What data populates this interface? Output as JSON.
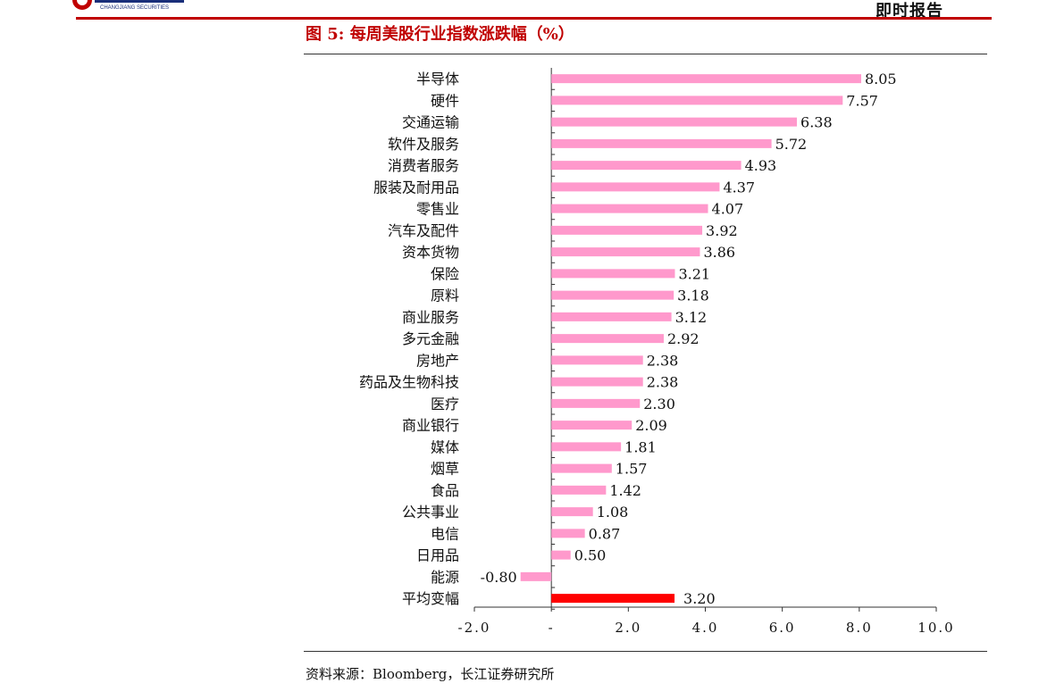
{
  "header": {
    "report_type": "即时报告",
    "logo_text": "CHANGJIANG SECURITIES"
  },
  "figure": {
    "title": "图 5:  每周美股行业指数涨跌幅（%）",
    "source": "资料来源：Bloomberg，长江证券研究所"
  },
  "colors": {
    "accent": "#c00000",
    "bar": "#ff99cc",
    "highlight_bar": "#ff0000"
  },
  "chart_data": {
    "type": "bar",
    "orientation": "horizontal",
    "categories": [
      "半导体",
      "硬件",
      "交通运输",
      "软件及服务",
      "消费者服务",
      "服装及耐用品",
      "零售业",
      "汽车及配件",
      "资本货物",
      "保险",
      "原料",
      "商业服务",
      "多元金融",
      "房地产",
      "药品及生物科技",
      "医疗",
      "商业银行",
      "媒体",
      "烟草",
      "食品",
      "公共事业",
      "电信",
      "日用品",
      "能源",
      "平均变幅"
    ],
    "values": [
      8.05,
      7.57,
      6.38,
      5.72,
      4.93,
      4.37,
      4.07,
      3.92,
      3.86,
      3.21,
      3.18,
      3.12,
      2.92,
      2.38,
      2.38,
      2.3,
      2.09,
      1.81,
      1.57,
      1.42,
      1.08,
      0.87,
      0.5,
      -0.8,
      3.2
    ],
    "value_labels": [
      "8.05",
      "7.57",
      "6.38",
      "5.72",
      "4.93",
      "4.37",
      "4.07",
      "3.92",
      "3.86",
      "3.21",
      "3.18",
      "3.12",
      "2.92",
      "2.38",
      "2.38",
      "2.30",
      "2.09",
      "1.81",
      "1.57",
      "1.42",
      "1.08",
      "0.87",
      "0.50",
      "-0.80",
      "3.20"
    ],
    "highlight_category": "平均变幅",
    "xlim": [
      -2.0,
      10.0
    ],
    "xticks": [
      -2.0,
      0,
      2.0,
      4.0,
      6.0,
      8.0,
      10.0
    ],
    "xtick_labels": [
      "-2.0",
      "-",
      "2.0",
      "4.0",
      "6.0",
      "8.0",
      "10.0"
    ],
    "grid": false,
    "legend": "none"
  }
}
